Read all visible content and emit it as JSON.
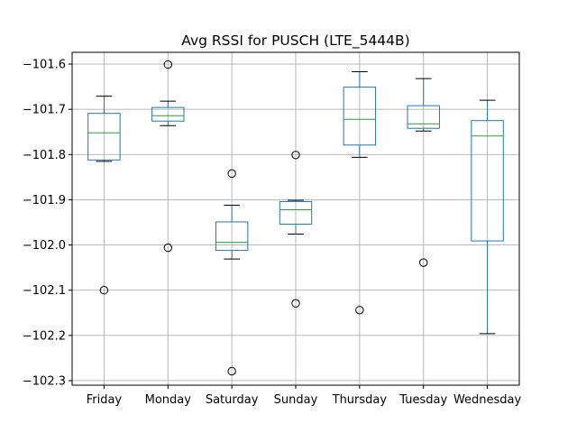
{
  "chart_data": {
    "type": "box",
    "title": "Avg RSSI for PUSCH (LTE_5444B)",
    "xlabel": "",
    "ylabel": "",
    "ylim": [
      -102.31,
      -101.574
    ],
    "yticks": [
      -102.3,
      -102.2,
      -102.1,
      -102.0,
      -101.9,
      -101.8,
      -101.7,
      -101.6
    ],
    "ytick_labels": [
      "−102.3",
      "−102.2",
      "−102.1",
      "−102.0",
      "−101.9",
      "−101.8",
      "−101.7",
      "−101.6"
    ],
    "grid": true,
    "categories": [
      "Friday",
      "Monday",
      "Saturday",
      "Sunday",
      "Thursday",
      "Tuesday",
      "Wednesday"
    ],
    "boxes": [
      {
        "category": "Friday",
        "whisker_low": -101.815,
        "q1": -101.812,
        "median": -101.752,
        "q3": -101.709,
        "whisker_high": -101.671,
        "outliers": [
          -102.1
        ]
      },
      {
        "category": "Monday",
        "whisker_low": -101.736,
        "q1": -101.726,
        "median": -101.714,
        "q3": -101.696,
        "whisker_high": -101.682,
        "outliers": [
          -101.601,
          -102.006
        ]
      },
      {
        "category": "Saturday",
        "whisker_low": -102.031,
        "q1": -102.012,
        "median": -101.994,
        "q3": -101.949,
        "whisker_high": -101.912,
        "outliers": [
          -101.842,
          -102.279
        ]
      },
      {
        "category": "Sunday",
        "whisker_low": -101.976,
        "q1": -101.954,
        "median": -101.922,
        "q3": -101.904,
        "whisker_high": -101.901,
        "outliers": [
          -101.801,
          -102.129
        ]
      },
      {
        "category": "Thursday",
        "whisker_low": -101.806,
        "q1": -101.779,
        "median": -101.722,
        "q3": -101.651,
        "whisker_high": -101.617,
        "outliers": [
          -102.144
        ]
      },
      {
        "category": "Tuesday",
        "whisker_low": -101.748,
        "q1": -101.742,
        "median": -101.732,
        "q3": -101.692,
        "whisker_high": -101.632,
        "outliers": [
          -102.039
        ]
      },
      {
        "category": "Wednesday",
        "whisker_low": -102.196,
        "q1": -101.991,
        "median": -101.759,
        "q3": -101.725,
        "whisker_high": -101.68,
        "outliers": []
      }
    ],
    "colors": {
      "box": "#1f77b4",
      "median": "#2ca02c",
      "whisker": "#000000",
      "outlier": "#000000",
      "grid": "#b0b0b0",
      "axes": "#000000"
    }
  }
}
